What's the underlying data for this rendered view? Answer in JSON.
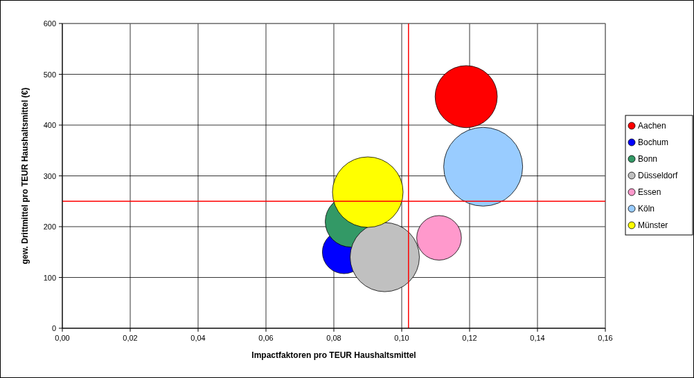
{
  "chart_data": {
    "type": "bubble",
    "xlabel": "Impactfaktoren pro TEUR Haushaltsmittel",
    "ylabel": "gew. Drittmittel pro TEUR Haushaltsmittel (€)",
    "xlim": [
      0,
      0.16
    ],
    "xticks": [
      {
        "value": 0,
        "label": "0,00"
      },
      {
        "value": 0.02,
        "label": "0,02"
      },
      {
        "value": 0.04,
        "label": "0,04"
      },
      {
        "value": 0.06,
        "label": "0,06"
      },
      {
        "value": 0.08,
        "label": "0,08"
      },
      {
        "value": 0.1,
        "label": "0,10"
      },
      {
        "value": 0.12,
        "label": "0,12"
      },
      {
        "value": 0.14,
        "label": "0,14"
      },
      {
        "value": 0.16,
        "label": "0,16"
      }
    ],
    "ylim": [
      0,
      600
    ],
    "yticks": [
      0,
      100,
      200,
      300,
      400,
      500,
      600
    ],
    "grid": true,
    "legend": "right",
    "marker": "circle",
    "ref_lines": [
      {
        "axis": "y",
        "value": 250,
        "color": "#ff0000"
      },
      {
        "axis": "x",
        "value": 0.102,
        "color": "#ff0000"
      }
    ],
    "series": [
      {
        "name": "Aachen",
        "color": "#ff0000",
        "x": [
          0.119
        ],
        "values": [
          456
        ],
        "sizes": [
          0.62
        ]
      },
      {
        "name": "Bochum",
        "color": "#0000ff",
        "x": [
          0.083
        ],
        "values": [
          150
        ],
        "sizes": [
          0.3
        ]
      },
      {
        "name": "Bonn",
        "color": "#339966",
        "x": [
          0.085
        ],
        "values": [
          210
        ],
        "sizes": [
          0.42
        ]
      },
      {
        "name": "Düsseldorf",
        "color": "#c0c0c0",
        "x": [
          0.095
        ],
        "values": [
          140
        ],
        "sizes": [
          0.77
        ]
      },
      {
        "name": "Essen",
        "color": "#ff99cc",
        "x": [
          0.111
        ],
        "values": [
          178
        ],
        "sizes": [
          0.32
        ]
      },
      {
        "name": "Köln",
        "color": "#99ccff",
        "x": [
          0.124
        ],
        "values": [
          318
        ],
        "sizes": [
          1
        ]
      },
      {
        "name": "Münster",
        "color": "#ffff00",
        "x": [
          0.09
        ],
        "values": [
          268
        ],
        "sizes": [
          0.8
        ]
      }
    ]
  }
}
